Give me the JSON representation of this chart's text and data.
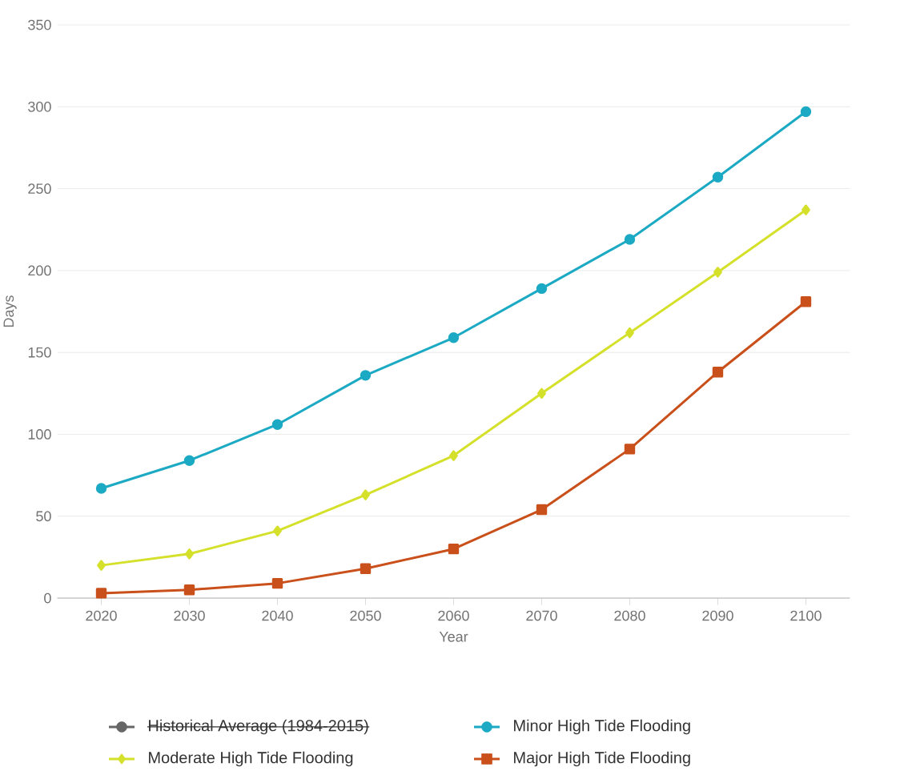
{
  "chart_data": {
    "type": "line",
    "xlabel": "Year",
    "ylabel": "Days",
    "categories": [
      "2020",
      "2030",
      "2040",
      "2050",
      "2060",
      "2070",
      "2080",
      "2090",
      "2100"
    ],
    "ylim": [
      0,
      350
    ],
    "yticks": [
      0,
      50,
      100,
      150,
      200,
      250,
      300,
      350
    ],
    "grid": "y",
    "legend": "bottom",
    "series": [
      {
        "name": "Historical Average (1984-2015)",
        "color": "#666666",
        "marker": "circle",
        "values": [
          null,
          null,
          null,
          null,
          null,
          null,
          null,
          null,
          null
        ]
      },
      {
        "name": "Minor High Tide Flooding",
        "color": "#1ba9c4",
        "marker": "circle",
        "values": [
          67,
          84,
          106,
          136,
          159,
          189,
          219,
          257,
          297
        ]
      },
      {
        "name": "Moderate High Tide Flooding",
        "color": "#d4e02a",
        "marker": "diamond",
        "values": [
          20,
          27,
          41,
          63,
          87,
          125,
          162,
          199,
          237
        ]
      },
      {
        "name": "Major High Tide Flooding",
        "color": "#c9501b",
        "marker": "square",
        "values": [
          3,
          5,
          9,
          18,
          30,
          54,
          91,
          138,
          181
        ]
      }
    ]
  }
}
